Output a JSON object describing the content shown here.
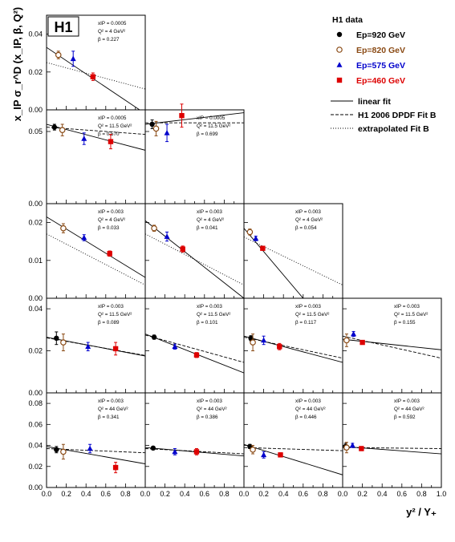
{
  "figure": {
    "logo": "H1",
    "ylabel": "x_IP σ_r^D (x_IP, β, Q²)",
    "xlabel": "y² / Y₊"
  },
  "legend": {
    "header": "H1 data",
    "series": [
      {
        "name": "Ep=920 GeV",
        "color": "#000000",
        "marker": "circle"
      },
      {
        "name": "Ep=820 GeV",
        "color": "#8a4a14",
        "marker": "open-circle"
      },
      {
        "name": "Ep=575 GeV",
        "color": "#0000cc",
        "marker": "triangle"
      },
      {
        "name": "Ep=460 GeV",
        "color": "#dd0000",
        "marker": "square"
      }
    ],
    "lines": [
      {
        "name": "linear fit",
        "style": "solid"
      },
      {
        "name": "H1 2006 DPDF Fit B",
        "style": "dashed"
      },
      {
        "name": "extrapolated Fit B",
        "style": "dotted"
      }
    ]
  },
  "chart_data": {
    "type": "scatter",
    "x_ticks": [
      "0.0",
      "0.2",
      "0.4",
      "0.6",
      "0.8",
      "0.0",
      "0.2",
      "0.4",
      "0.6",
      "0.8",
      "0.0",
      "0.2",
      "0.4",
      "0.6",
      "0.8",
      "0.0",
      "0.2",
      "0.4",
      "0.6",
      "0.8",
      "1.0"
    ],
    "xlim": [
      0,
      1
    ],
    "rows": [
      {
        "ylim": [
          0,
          0.05
        ],
        "y_ticks": [
          "0.00",
          "0.02",
          "0.04"
        ],
        "tick_values": [
          0,
          0.02,
          0.04
        ],
        "panels": [
          {
            "col": 0,
            "labels": [
              "xIP = 0.0005",
              "Q² = 4 GeV²",
              "β = 0.227"
            ],
            "points": [
              {
                "series": 1,
                "x": 0.12,
                "y": 0.029,
                "err": 0.002
              },
              {
                "series": 2,
                "x": 0.27,
                "y": 0.027,
                "err": 0.004
              },
              {
                "series": 3,
                "x": 0.47,
                "y": 0.0175,
                "err": 0.002
              }
            ],
            "linear": [
              [
                0,
                0.033
              ],
              [
                1,
                -0.002
              ]
            ],
            "extrap": [
              [
                0,
                0.025
              ],
              [
                1,
                0.011
              ]
            ]
          }
        ]
      },
      {
        "ylim": [
          0,
          0.065
        ],
        "y_ticks": [
          "0.00",
          "0.05"
        ],
        "tick_values": [
          0,
          0.05
        ],
        "panels": [
          {
            "col": 0,
            "labels": [
              "xIP = 0.0005",
              "Q² = 11.5 GeV²",
              "β = 0.570"
            ],
            "points": [
              {
                "series": 0,
                "x": 0.08,
                "y": 0.053,
                "err": 0.002
              },
              {
                "series": 1,
                "x": 0.16,
                "y": 0.051,
                "err": 0.004
              },
              {
                "series": 2,
                "x": 0.38,
                "y": 0.045,
                "err": 0.004
              },
              {
                "series": 3,
                "x": 0.65,
                "y": 0.043,
                "err": 0.005
              }
            ],
            "linear": [
              [
                0,
                0.055
              ],
              [
                1,
                0.037
              ]
            ],
            "dashed": [
              [
                0,
                0.053
              ],
              [
                1,
                0.048
              ]
            ]
          },
          {
            "col": 1,
            "labels": [
              "xIP = 0.0005",
              "Q² = 11.5 GeV²",
              "β = 0.699"
            ],
            "points": [
              {
                "series": 0,
                "x": 0.07,
                "y": 0.055,
                "err": 0.003
              },
              {
                "series": 1,
                "x": 0.11,
                "y": 0.052,
                "err": 0.005
              },
              {
                "series": 2,
                "x": 0.22,
                "y": 0.049,
                "err": 0.006
              },
              {
                "series": 3,
                "x": 0.37,
                "y": 0.061,
                "err": 0.008
              }
            ],
            "linear": [
              [
                0,
                0.055
              ],
              [
                1,
                0.063
              ]
            ],
            "dashed": [
              [
                0,
                0.056
              ],
              [
                1,
                0.056
              ]
            ]
          }
        ]
      },
      {
        "ylim": [
          0,
          0.025
        ],
        "y_ticks": [
          "0.00",
          "0.01",
          "0.02"
        ],
        "tick_values": [
          0,
          0.01,
          0.02
        ],
        "panels": [
          {
            "col": 0,
            "labels": [
              "xIP = 0.003",
              "Q² = 4 GeV²",
              "β = 0.033"
            ],
            "points": [
              {
                "series": 1,
                "x": 0.17,
                "y": 0.0185,
                "err": 0.0012
              },
              {
                "series": 2,
                "x": 0.38,
                "y": 0.016,
                "err": 0.0008
              },
              {
                "series": 3,
                "x": 0.64,
                "y": 0.0118,
                "err": 0.0007
              }
            ],
            "linear": [
              [
                0,
                0.0215
              ],
              [
                1,
                0.0055
              ]
            ],
            "extrap": [
              [
                0,
                0.017
              ],
              [
                1,
                0.0035
              ]
            ]
          },
          {
            "col": 1,
            "labels": [
              "xIP = 0.003",
              "Q² = 4 GeV²",
              "β = 0.041"
            ],
            "points": [
              {
                "series": 1,
                "x": 0.09,
                "y": 0.0185,
                "err": 0.0008
              },
              {
                "series": 2,
                "x": 0.22,
                "y": 0.0163,
                "err": 0.0012
              },
              {
                "series": 3,
                "x": 0.38,
                "y": 0.013,
                "err": 0.0008
              }
            ],
            "linear": [
              [
                0,
                0.0205
              ],
              [
                1,
                0
              ]
            ],
            "extrap": [
              [
                0,
                0.017
              ],
              [
                1,
                0.0035
              ]
            ]
          },
          {
            "col": 2,
            "labels": [
              "xIP = 0.003",
              "Q² = 4 GeV²",
              "β = 0.054"
            ],
            "points": [
              {
                "series": 1,
                "x": 0.06,
                "y": 0.0175,
                "err": 0.0008
              },
              {
                "series": 2,
                "x": 0.12,
                "y": 0.0158,
                "err": 0.0006
              },
              {
                "series": 3,
                "x": 0.19,
                "y": 0.0132,
                "err": 0.0004
              }
            ],
            "linear": [
              [
                0,
                0.0185
              ],
              [
                0.6,
                0
              ]
            ],
            "extrap": [
              [
                0,
                0.0162
              ],
              [
                1,
                0.0035
              ]
            ]
          }
        ]
      },
      {
        "ylim": [
          0,
          0.045
        ],
        "y_ticks": [
          "0.00",
          "0.02",
          "0.04"
        ],
        "tick_values": [
          0,
          0.02,
          0.04
        ],
        "panels": [
          {
            "col": 0,
            "labels": [
              "xIP = 0.003",
              "Q² = 11.5 GeV²",
              "β = 0.089"
            ],
            "points": [
              {
                "series": 0,
                "x": 0.1,
                "y": 0.026,
                "err": 0.003
              },
              {
                "series": 1,
                "x": 0.17,
                "y": 0.024,
                "err": 0.004
              },
              {
                "series": 2,
                "x": 0.42,
                "y": 0.022,
                "err": 0.002
              },
              {
                "series": 3,
                "x": 0.7,
                "y": 0.021,
                "err": 0.003
              }
            ],
            "linear": [
              [
                0,
                0.0265
              ],
              [
                1,
                0.0175
              ]
            ],
            "dashed": [
              [
                0,
                0.0262
              ],
              [
                1,
                0.0178
              ]
            ]
          },
          {
            "col": 1,
            "labels": [
              "xIP = 0.003",
              "Q² = 11.5 GeV²",
              "β = 0.101"
            ],
            "points": [
              {
                "series": 0,
                "x": 0.09,
                "y": 0.0265,
                "err": 0.001
              },
              {
                "series": 2,
                "x": 0.3,
                "y": 0.022,
                "err": 0.0012
              },
              {
                "series": 3,
                "x": 0.52,
                "y": 0.018,
                "err": 0.0012
              }
            ],
            "linear": [
              [
                0,
                0.028
              ],
              [
                1,
                0.0095
              ]
            ],
            "dashed": [
              [
                0,
                0.0275
              ],
              [
                1,
                0.0145
              ]
            ]
          },
          {
            "col": 2,
            "labels": [
              "xIP = 0.003",
              "Q² = 11.5 GeV²",
              "β = 0.117"
            ],
            "points": [
              {
                "series": 0,
                "x": 0.07,
                "y": 0.026,
                "err": 0.0012
              },
              {
                "series": 1,
                "x": 0.09,
                "y": 0.024,
                "err": 0.004
              },
              {
                "series": 2,
                "x": 0.2,
                "y": 0.025,
                "err": 0.002
              },
              {
                "series": 3,
                "x": 0.36,
                "y": 0.022,
                "err": 0.0015
              }
            ],
            "linear": [
              [
                0,
                0.027
              ],
              [
                1,
                0.0145
              ]
            ],
            "dashed": [
              [
                0,
                0.0265
              ],
              [
                1,
                0.0165
              ]
            ]
          },
          {
            "col": 3,
            "labels": [
              "xIP = 0.003",
              "Q² = 11.5 GeV²",
              "β = 0.155"
            ],
            "points": [
              {
                "series": 1,
                "x": 0.04,
                "y": 0.025,
                "err": 0.003
              },
              {
                "series": 2,
                "x": 0.11,
                "y": 0.028,
                "err": 0.0012
              },
              {
                "series": 3,
                "x": 0.2,
                "y": 0.024,
                "err": 0.0008
              }
            ],
            "linear": [
              [
                0,
                0.0255
              ],
              [
                1,
                0.0205
              ]
            ],
            "dashed": [
              [
                0,
                0.027
              ],
              [
                1,
                0.0165
              ]
            ]
          }
        ]
      },
      {
        "ylim": [
          0,
          0.09
        ],
        "y_ticks": [
          "0.00",
          "0.02",
          "0.04",
          "0.06",
          "0.08"
        ],
        "tick_values": [
          0,
          0.02,
          0.04,
          0.06,
          0.08
        ],
        "panels": [
          {
            "col": 0,
            "labels": [
              "xIP = 0.003",
              "Q² = 44 GeV²",
              "β = 0.341"
            ],
            "points": [
              {
                "series": 0,
                "x": 0.1,
                "y": 0.036,
                "err": 0.003
              },
              {
                "series": 1,
                "x": 0.17,
                "y": 0.034,
                "err": 0.007
              },
              {
                "series": 2,
                "x": 0.44,
                "y": 0.037,
                "err": 0.004
              },
              {
                "series": 3,
                "x": 0.7,
                "y": 0.019,
                "err": 0.005
              }
            ],
            "linear": [
              [
                0,
                0.039
              ],
              [
                1,
                0.0225
              ]
            ],
            "dashed": [
              [
                0,
                0.037
              ],
              [
                1,
                0.033
              ]
            ]
          },
          {
            "col": 1,
            "labels": [
              "xIP = 0.003",
              "Q² = 44 GeV²",
              "β = 0.386"
            ],
            "points": [
              {
                "series": 0,
                "x": 0.08,
                "y": 0.0375,
                "err": 0.0015
              },
              {
                "series": 2,
                "x": 0.3,
                "y": 0.034,
                "err": 0.003
              },
              {
                "series": 3,
                "x": 0.52,
                "y": 0.034,
                "err": 0.003
              }
            ],
            "linear": [
              [
                0,
                0.038
              ],
              [
                1,
                0.03
              ]
            ],
            "dashed": [
              [
                0,
                0.037
              ],
              [
                1,
                0.032
              ]
            ]
          },
          {
            "col": 2,
            "labels": [
              "xIP = 0.003",
              "Q² = 44 GeV²",
              "β = 0.446"
            ],
            "points": [
              {
                "series": 0,
                "x": 0.06,
                "y": 0.039,
                "err": 0.002
              },
              {
                "series": 1,
                "x": 0.09,
                "y": 0.036,
                "err": 0.004
              },
              {
                "series": 2,
                "x": 0.2,
                "y": 0.031,
                "err": 0.003
              },
              {
                "series": 3,
                "x": 0.37,
                "y": 0.031,
                "err": 0.002
              }
            ],
            "linear": [
              [
                0,
                0.041
              ],
              [
                1,
                0.012
              ]
            ],
            "dashed": [
              [
                0,
                0.038
              ],
              [
                1,
                0.035
              ]
            ]
          },
          {
            "col": 3,
            "labels": [
              "xIP = 0.003",
              "Q² = 44 GeV²",
              "β = 0.592"
            ],
            "points": [
              {
                "series": 0,
                "x": 0.03,
                "y": 0.039,
                "err": 0.003
              },
              {
                "series": 1,
                "x": 0.04,
                "y": 0.038,
                "err": 0.005
              },
              {
                "series": 2,
                "x": 0.1,
                "y": 0.04,
                "err": 0.002
              },
              {
                "series": 3,
                "x": 0.19,
                "y": 0.037,
                "err": 0.002
              }
            ],
            "linear": [
              [
                0,
                0.039
              ],
              [
                1,
                0.032
              ]
            ],
            "dashed": [
              [
                0,
                0.038
              ],
              [
                1,
                0.037
              ]
            ]
          }
        ]
      }
    ]
  }
}
